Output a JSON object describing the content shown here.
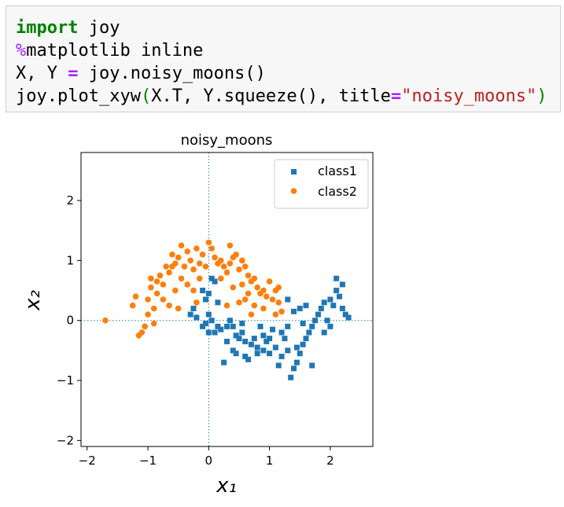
{
  "code_cell": {
    "line1": {
      "kw": "import",
      "rest": " joy"
    },
    "line2": {
      "magic": "%",
      "rest": "matplotlib inline"
    },
    "line3": {
      "a": "X, Y ",
      "op": "=",
      "b": " joy.noisy_moons()"
    },
    "line4": {
      "a": "joy.plot_xyw",
      "p1": "(",
      "b": "X.T, Y.squeeze(), title",
      "op": "=",
      "str": "\"noisy_moons\"",
      "p2": ")"
    }
  },
  "chart_data": {
    "type": "scatter",
    "title": "noisy_moons",
    "xlabel": "x₁",
    "ylabel": "x₂",
    "xlim": [
      -2.1,
      2.7
    ],
    "ylim": [
      -2.1,
      2.8
    ],
    "xticks": [
      -2,
      -1,
      0,
      1,
      2
    ],
    "yticks": [
      -2,
      -1,
      0,
      1,
      2
    ],
    "xtick_labels": [
      "−2",
      "−1",
      "0",
      "1",
      "2"
    ],
    "ytick_labels": [
      "−2",
      "−1",
      "0",
      "1",
      "2"
    ],
    "reference_lines": {
      "x": 0,
      "y": 0,
      "style": "dotted",
      "color": "#1f77b4"
    },
    "legend": {
      "placement": "top-right",
      "entries": [
        "class1",
        "class2"
      ]
    },
    "series": [
      {
        "name": "class1",
        "marker": "square",
        "color": "#1f77b4",
        "points": [
          [
            0.05,
            0.7
          ],
          [
            0.1,
            0.65
          ],
          [
            -0.1,
            0.5
          ],
          [
            0.0,
            0.45
          ],
          [
            -0.05,
            0.35
          ],
          [
            0.15,
            0.3
          ],
          [
            -0.25,
            0.2
          ],
          [
            -0.3,
            0.1
          ],
          [
            -0.2,
            0.05
          ],
          [
            0.0,
            0.1
          ],
          [
            0.05,
            0.0
          ],
          [
            -0.1,
            -0.1
          ],
          [
            0.0,
            -0.2
          ],
          [
            0.1,
            -0.2
          ],
          [
            0.2,
            -0.15
          ],
          [
            0.3,
            -0.1
          ],
          [
            0.35,
            0.0
          ],
          [
            0.4,
            -0.1
          ],
          [
            0.45,
            -0.25
          ],
          [
            0.5,
            -0.3
          ],
          [
            0.55,
            -0.2
          ],
          [
            0.6,
            -0.35
          ],
          [
            0.7,
            -0.4
          ],
          [
            0.75,
            -0.3
          ],
          [
            0.8,
            -0.45
          ],
          [
            0.9,
            -0.5
          ],
          [
            0.95,
            -0.35
          ],
          [
            1.0,
            -0.55
          ],
          [
            1.1,
            -0.45
          ],
          [
            1.2,
            -0.6
          ],
          [
            1.3,
            -0.5
          ],
          [
            1.4,
            -0.8
          ],
          [
            1.45,
            -0.7
          ],
          [
            1.5,
            -0.55
          ],
          [
            1.55,
            -0.4
          ],
          [
            1.6,
            -0.3
          ],
          [
            1.65,
            -0.2
          ],
          [
            1.7,
            -0.1
          ],
          [
            1.75,
            0.0
          ],
          [
            1.8,
            0.1
          ],
          [
            1.85,
            0.2
          ],
          [
            1.9,
            0.3
          ],
          [
            2.0,
            0.35
          ],
          [
            2.05,
            0.25
          ],
          [
            2.1,
            0.5
          ],
          [
            2.15,
            0.4
          ],
          [
            2.2,
            0.2
          ],
          [
            2.25,
            0.1
          ],
          [
            2.3,
            0.05
          ],
          [
            2.1,
            0.7
          ],
          [
            2.2,
            0.6
          ],
          [
            1.6,
            0.25
          ],
          [
            1.5,
            0.2
          ],
          [
            1.4,
            0.15
          ],
          [
            1.3,
            0.35
          ],
          [
            0.3,
            -0.35
          ],
          [
            0.4,
            -0.5
          ],
          [
            0.6,
            -0.6
          ],
          [
            0.8,
            -0.55
          ],
          [
            1.0,
            -0.3
          ],
          [
            1.2,
            -0.2
          ],
          [
            1.3,
            -0.1
          ],
          [
            0.25,
            -0.7
          ],
          [
            1.15,
            -0.75
          ],
          [
            1.7,
            -0.75
          ],
          [
            1.35,
            -0.95
          ],
          [
            0.65,
            -0.65
          ],
          [
            0.9,
            -0.25
          ],
          [
            1.05,
            -0.15
          ],
          [
            0.55,
            -0.05
          ],
          [
            0.15,
            -0.1
          ],
          [
            -0.05,
            -0.05
          ],
          [
            1.95,
            0.0
          ],
          [
            2.0,
            -0.1
          ],
          [
            1.55,
            -0.05
          ],
          [
            1.25,
            -0.3
          ],
          [
            0.85,
            -0.1
          ],
          [
            0.45,
            -0.55
          ],
          [
            1.45,
            -0.45
          ],
          [
            1.9,
            -0.2
          ]
        ]
      },
      {
        "name": "class2",
        "marker": "circle",
        "color": "#ff7f0e",
        "points": [
          [
            -1.7,
            0.0
          ],
          [
            -1.25,
            0.25
          ],
          [
            -1.1,
            -0.2
          ],
          [
            -1.0,
            0.35
          ],
          [
            -0.95,
            0.55
          ],
          [
            -0.9,
            0.2
          ],
          [
            -0.85,
            0.45
          ],
          [
            -0.8,
            0.75
          ],
          [
            -0.75,
            0.6
          ],
          [
            -0.7,
            0.9
          ],
          [
            -0.65,
            0.8
          ],
          [
            -0.6,
            1.1
          ],
          [
            -0.55,
            0.95
          ],
          [
            -0.5,
            1.05
          ],
          [
            -0.45,
            1.25
          ],
          [
            -0.4,
            0.9
          ],
          [
            -0.35,
            1.15
          ],
          [
            -0.3,
            1.0
          ],
          [
            -0.25,
            0.85
          ],
          [
            -0.2,
            1.2
          ],
          [
            -0.15,
            0.95
          ],
          [
            -0.1,
            1.1
          ],
          [
            -0.05,
            0.9
          ],
          [
            0.0,
            1.3
          ],
          [
            0.05,
            1.2
          ],
          [
            0.1,
            1.05
          ],
          [
            0.15,
            0.95
          ],
          [
            0.2,
            1.0
          ],
          [
            0.25,
            0.9
          ],
          [
            0.3,
            0.8
          ],
          [
            0.35,
            0.95
          ],
          [
            0.4,
            1.05
          ],
          [
            0.45,
            1.1
          ],
          [
            0.5,
            0.85
          ],
          [
            0.55,
            1.0
          ],
          [
            0.6,
            0.9
          ],
          [
            0.65,
            0.75
          ],
          [
            0.7,
            0.65
          ],
          [
            0.75,
            0.7
          ],
          [
            0.8,
            0.55
          ],
          [
            0.85,
            0.45
          ],
          [
            0.9,
            0.5
          ],
          [
            0.95,
            0.4
          ],
          [
            1.0,
            0.65
          ],
          [
            1.05,
            0.35
          ],
          [
            1.1,
            0.5
          ],
          [
            1.15,
            0.3
          ],
          [
            1.2,
            0.15
          ],
          [
            -1.2,
            0.4
          ],
          [
            -1.0,
            0.1
          ],
          [
            -0.9,
            -0.05
          ],
          [
            -1.05,
            -0.1
          ],
          [
            -0.85,
            0.65
          ],
          [
            -0.5,
            0.2
          ],
          [
            -0.55,
            0.5
          ],
          [
            -0.25,
            0.5
          ],
          [
            0.4,
            0.55
          ],
          [
            0.5,
            0.3
          ],
          [
            0.6,
            0.35
          ],
          [
            0.7,
            0.1
          ],
          [
            0.3,
            0.25
          ],
          [
            -0.15,
            0.7
          ],
          [
            -0.35,
            0.6
          ],
          [
            -0.75,
            0.35
          ],
          [
            -0.65,
            0.25
          ],
          [
            0.2,
            0.7
          ],
          [
            0.75,
            0.25
          ],
          [
            0.9,
            0.2
          ],
          [
            1.1,
            0.1
          ],
          [
            -1.15,
            -0.25
          ],
          [
            -0.95,
            0.7
          ],
          [
            0.55,
            0.6
          ],
          [
            0.65,
            0.45
          ],
          [
            -0.6,
            0.9
          ],
          [
            0.35,
            1.25
          ],
          [
            1.15,
            0.55
          ],
          [
            -0.45,
            0.7
          ],
          [
            -0.2,
            0.3
          ]
        ]
      }
    ]
  }
}
